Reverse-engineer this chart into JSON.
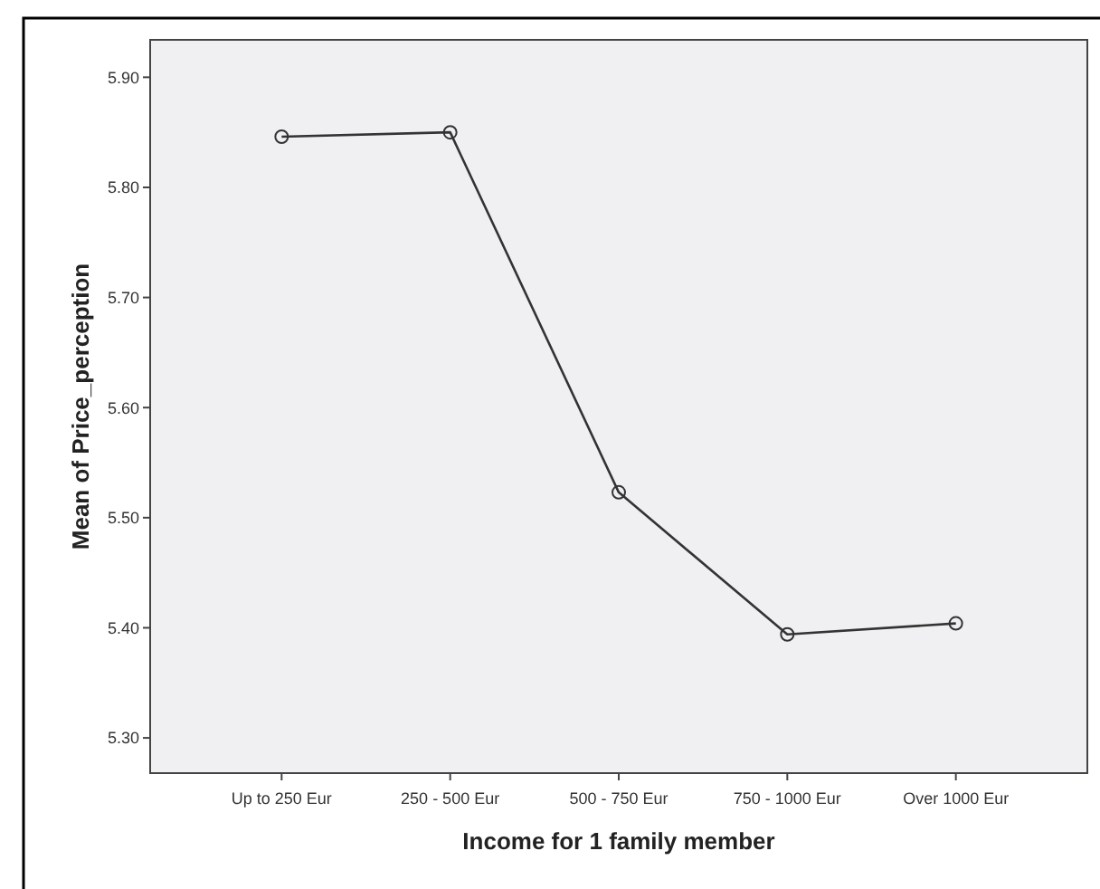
{
  "chart_data": {
    "type": "line",
    "xlabel": "Income for 1 family member",
    "ylabel": "Mean of Price_perception",
    "categories": [
      "Up to 250 Eur",
      "250 - 500 Eur",
      "500 - 750 Eur",
      "750 - 1000 Eur",
      "Over 1000 Eur"
    ],
    "series": [
      {
        "color": "#333333",
        "values": [
          5.846,
          5.85,
          5.523,
          5.394,
          5.404
        ]
      }
    ],
    "ylim": [
      5.268,
      5.934
    ],
    "yticks": [
      {
        "value": 5.3,
        "label": "5.30"
      },
      {
        "value": 5.4,
        "label": "5.40"
      },
      {
        "value": 5.5,
        "label": "5.50"
      },
      {
        "value": 5.6,
        "label": "5.60"
      },
      {
        "value": 5.7,
        "label": "5.70"
      },
      {
        "value": 5.8,
        "label": "5.80"
      },
      {
        "value": 5.9,
        "label": "5.90"
      }
    ],
    "grid": false,
    "marker": "circle",
    "line_style": "solid"
  }
}
